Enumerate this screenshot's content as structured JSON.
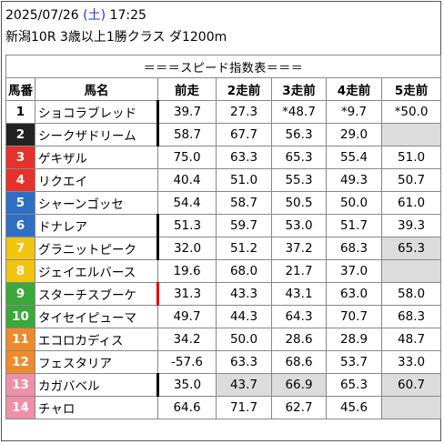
{
  "header": {
    "date": "2025/07/26",
    "weekday": "(土)",
    "time": "17:25",
    "race": "新潟10R 3歳以上1勝クラス ダ1200m"
  },
  "table": {
    "title": "＝＝＝スピード指数表＝＝＝",
    "columns": [
      "馬番",
      "馬名",
      "前走",
      "2走前",
      "3走前",
      "4走前",
      "5走前"
    ],
    "rows": [
      {
        "no": "1",
        "name": "ショコラブレッド",
        "vals": [
          "39.7",
          "27.3",
          "*48.7",
          "*9.7",
          "*50.0"
        ],
        "bg": "#ffffff",
        "fg": "#000000",
        "mark": "black",
        "gray": []
      },
      {
        "no": "2",
        "name": "シークザドリーム",
        "vals": [
          "58.7",
          "67.7",
          "56.3",
          "29.0",
          ""
        ],
        "bg": "#222222",
        "fg": "#ffffff",
        "mark": "black",
        "gray": [
          4
        ]
      },
      {
        "no": "3",
        "name": "ゲキザル",
        "vals": [
          "75.0",
          "63.3",
          "65.3",
          "55.4",
          "51.0"
        ],
        "bg": "#e5322d",
        "fg": "#ffffff",
        "mark": "",
        "gray": []
      },
      {
        "no": "4",
        "name": "リクエイ",
        "vals": [
          "40.4",
          "51.0",
          "55.3",
          "49.3",
          "50.7"
        ],
        "bg": "#e5322d",
        "fg": "#ffffff",
        "mark": "",
        "gray": []
      },
      {
        "no": "5",
        "name": "シャーンゴッセ",
        "vals": [
          "54.4",
          "58.7",
          "50.5",
          "50.0",
          "61.0"
        ],
        "bg": "#2e6fc4",
        "fg": "#ffffff",
        "mark": "",
        "gray": []
      },
      {
        "no": "6",
        "name": "ドナレア",
        "vals": [
          "51.3",
          "59.7",
          "53.0",
          "51.7",
          "39.3"
        ],
        "bg": "#2e6fc4",
        "fg": "#ffffff",
        "mark": "black",
        "gray": []
      },
      {
        "no": "7",
        "name": "グラニットピーク",
        "vals": [
          "32.0",
          "51.2",
          "37.2",
          "68.3",
          "65.3"
        ],
        "bg": "#f1c40f",
        "fg": "#ffffff",
        "mark": "black",
        "gray": [
          4
        ]
      },
      {
        "no": "8",
        "name": "ジェイエルバース",
        "vals": [
          "19.6",
          "68.0",
          "21.7",
          "37.0",
          ""
        ],
        "bg": "#f1c40f",
        "fg": "#ffffff",
        "mark": "",
        "gray": [
          4
        ]
      },
      {
        "no": "9",
        "name": "スターチスブーケ",
        "vals": [
          "31.3",
          "43.3",
          "43.1",
          "63.0",
          "58.0"
        ],
        "bg": "#3aa83a",
        "fg": "#ffffff",
        "mark": "red",
        "gray": []
      },
      {
        "no": "10",
        "name": "タイセイピューマ",
        "vals": [
          "49.7",
          "44.3",
          "64.3",
          "70.7",
          "68.3"
        ],
        "bg": "#3aa83a",
        "fg": "#ffffff",
        "mark": "",
        "gray": []
      },
      {
        "no": "11",
        "name": "エコロカディス",
        "vals": [
          "34.2",
          "50.0",
          "28.6",
          "28.9",
          "48.7"
        ],
        "bg": "#ef8a2b",
        "fg": "#ffffff",
        "mark": "",
        "gray": []
      },
      {
        "no": "12",
        "name": "フェスタリア",
        "vals": [
          "-57.6",
          "63.3",
          "68.6",
          "53.7",
          "33.0"
        ],
        "bg": "#ef8a2b",
        "fg": "#ffffff",
        "mark": "",
        "gray": []
      },
      {
        "no": "13",
        "name": "カガバベル",
        "vals": [
          "35.0",
          "43.7",
          "66.9",
          "65.3",
          "60.7"
        ],
        "bg": "#ef8fa8",
        "fg": "#ffffff",
        "mark": "black",
        "gray": [
          1,
          2,
          4
        ]
      },
      {
        "no": "14",
        "name": "チャロ",
        "vals": [
          "64.6",
          "71.7",
          "62.7",
          "45.6",
          ""
        ],
        "bg": "#ef8fa8",
        "fg": "#ffffff",
        "mark": "",
        "gray": [
          4
        ]
      }
    ]
  }
}
